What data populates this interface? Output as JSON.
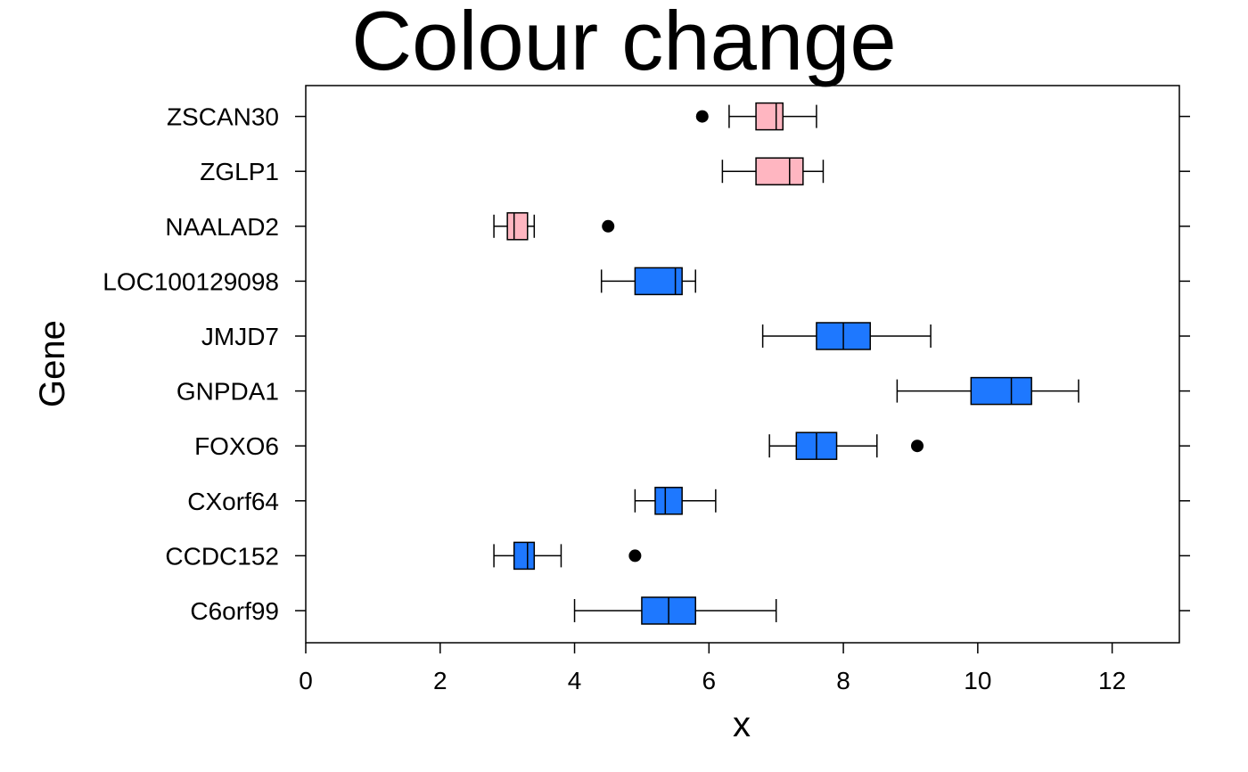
{
  "chart_data": {
    "type": "boxplot",
    "title": "Colour change",
    "xlabel": "x",
    "ylabel": "Gene",
    "xlim": [
      0,
      13
    ],
    "xticks": [
      0,
      2,
      4,
      6,
      8,
      10,
      12
    ],
    "grid": false,
    "legend": "none",
    "colors": {
      "pink": "#FFB6C1",
      "blue": "#1E78FF",
      "stroke": "#000000"
    },
    "boxes": [
      {
        "gene": "C6orf99",
        "whisker_low": 4.0,
        "q1": 5.0,
        "median": 5.4,
        "q3": 5.8,
        "whisker_high": 7.0,
        "outliers": [],
        "color": "blue"
      },
      {
        "gene": "CCDC152",
        "whisker_low": 2.8,
        "q1": 3.1,
        "median": 3.3,
        "q3": 3.4,
        "whisker_high": 3.8,
        "outliers": [
          4.9
        ],
        "color": "blue"
      },
      {
        "gene": "CXorf64",
        "whisker_low": 4.9,
        "q1": 5.2,
        "median": 5.35,
        "q3": 5.6,
        "whisker_high": 6.1,
        "outliers": [],
        "color": "blue"
      },
      {
        "gene": "FOXO6",
        "whisker_low": 6.9,
        "q1": 7.3,
        "median": 7.6,
        "q3": 7.9,
        "whisker_high": 8.5,
        "outliers": [
          9.1
        ],
        "color": "blue"
      },
      {
        "gene": "GNPDA1",
        "whisker_low": 8.8,
        "q1": 9.9,
        "median": 10.5,
        "q3": 10.8,
        "whisker_high": 11.5,
        "outliers": [],
        "color": "blue"
      },
      {
        "gene": "JMJD7",
        "whisker_low": 6.8,
        "q1": 7.6,
        "median": 8.0,
        "q3": 8.4,
        "whisker_high": 9.3,
        "outliers": [],
        "color": "blue"
      },
      {
        "gene": "LOC100129098",
        "whisker_low": 4.4,
        "q1": 4.9,
        "median": 5.5,
        "q3": 5.6,
        "whisker_high": 5.8,
        "outliers": [],
        "color": "blue"
      },
      {
        "gene": "NAALAD2",
        "whisker_low": 2.8,
        "q1": 3.0,
        "median": 3.1,
        "q3": 3.3,
        "whisker_high": 3.4,
        "outliers": [
          4.5
        ],
        "color": "pink"
      },
      {
        "gene": "ZGLP1",
        "whisker_low": 6.2,
        "q1": 6.7,
        "median": 7.2,
        "q3": 7.4,
        "whisker_high": 7.7,
        "outliers": [],
        "color": "pink"
      },
      {
        "gene": "ZSCAN30",
        "whisker_low": 6.3,
        "q1": 6.7,
        "median": 7.0,
        "q3": 7.1,
        "whisker_high": 7.6,
        "outliers": [
          5.9
        ],
        "color": "pink"
      }
    ]
  }
}
